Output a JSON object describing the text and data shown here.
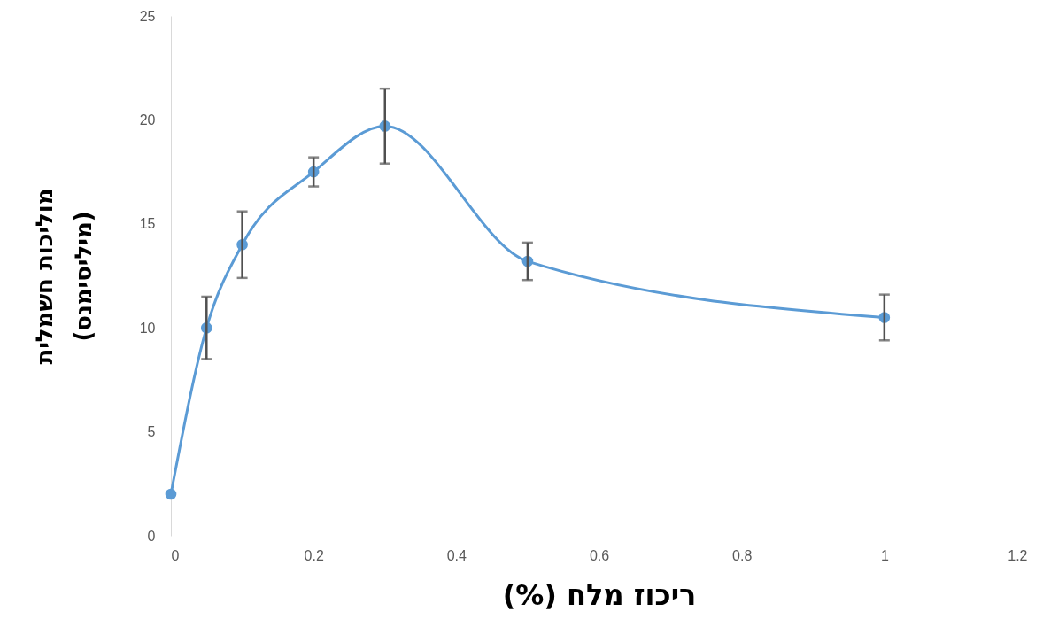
{
  "chart_data": {
    "type": "line",
    "xlabel": "ריכוז מלח (%)",
    "ylabel": "מוליכות חשמלית\n(מיליסימנס)",
    "x": [
      0,
      0.05,
      0.1,
      0.2,
      0.3,
      0.5,
      1
    ],
    "series": [
      {
        "color": "#5b9bd5",
        "values": [
          2,
          10,
          14,
          17.5,
          19.7,
          13.2,
          10.5
        ],
        "errors": [
          null,
          [
            8.5,
            11.5
          ],
          [
            12.4,
            15.6
          ],
          [
            16.8,
            18.2
          ],
          [
            17.9,
            21.5
          ],
          [
            12.3,
            14.1
          ],
          [
            9.4,
            11.6
          ]
        ]
      }
    ],
    "xlim": [
      0,
      1.2
    ],
    "xticks": [
      0,
      0.2,
      0.4,
      0.6,
      0.8,
      1,
      1.2
    ],
    "ylim": [
      0,
      25
    ],
    "yticks": [
      0,
      5,
      10,
      15,
      20,
      25
    ],
    "grid": false,
    "marker": "circle",
    "line_style": "solid"
  }
}
